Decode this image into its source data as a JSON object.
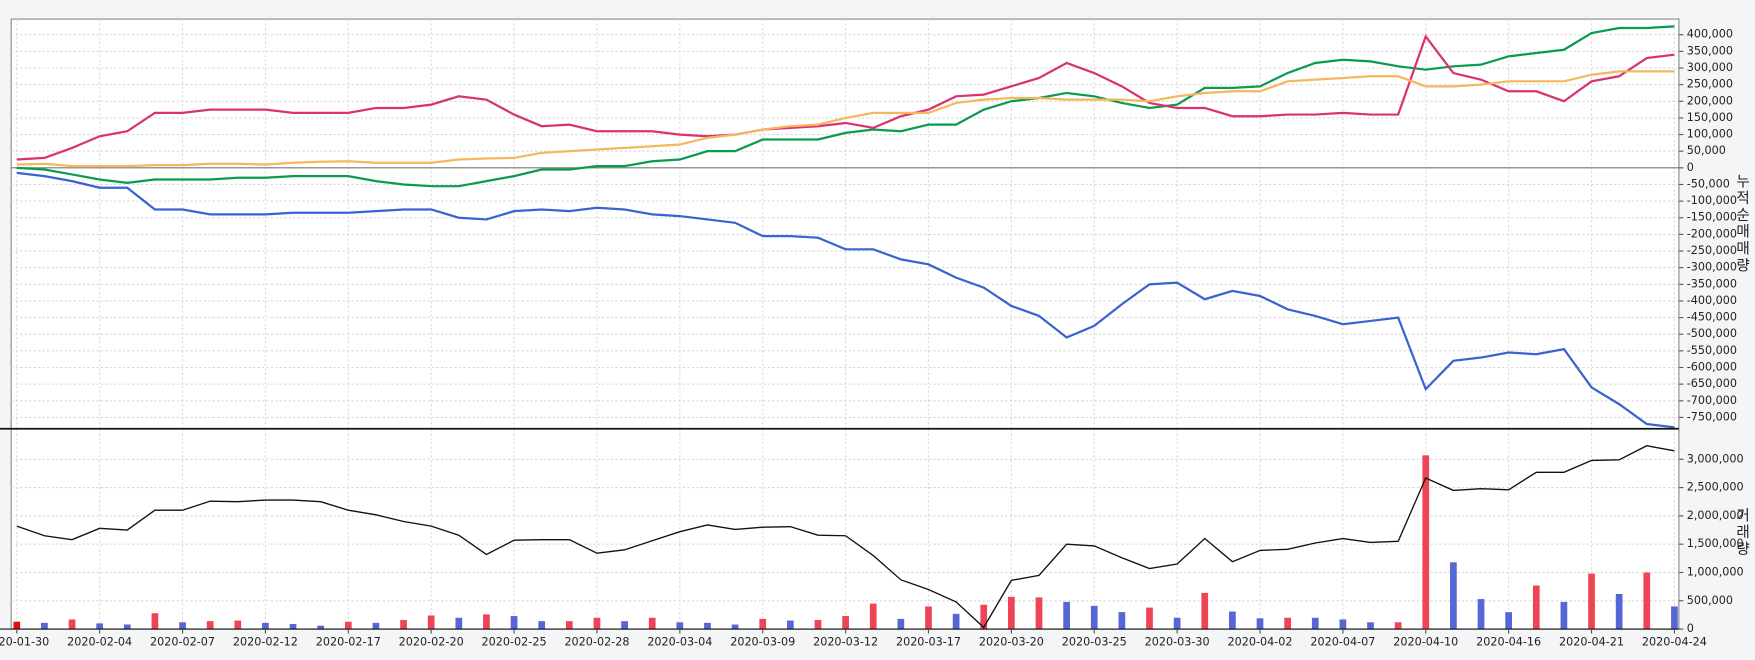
{
  "chart_data": [
    {
      "type": "line",
      "ylabel": "누적순매매량",
      "ylim": [
        -784000,
        447000
      ],
      "yticks": [
        {
          "value": -750000,
          "label": "-750,000"
        },
        {
          "value": -700000,
          "label": "-700,000"
        },
        {
          "value": -650000,
          "label": "-650,000"
        },
        {
          "value": -600000,
          "label": "-600,000"
        },
        {
          "value": -550000,
          "label": "-550,000"
        },
        {
          "value": -500000,
          "label": "-500,000"
        },
        {
          "value": -450000,
          "label": "-450,000"
        },
        {
          "value": -400000,
          "label": "-400,000"
        },
        {
          "value": -350000,
          "label": "-350,000"
        },
        {
          "value": -300000,
          "label": "-300,000"
        },
        {
          "value": -250000,
          "label": "-250,000"
        },
        {
          "value": -200000,
          "label": "-200,000"
        },
        {
          "value": -150000,
          "label": "-150,000"
        },
        {
          "value": -100000,
          "label": "-100,000"
        },
        {
          "value": -50000,
          "label": "-50,000"
        },
        0,
        {
          "value": 50000,
          "label": "50,000"
        },
        {
          "value": 100000,
          "label": "100,000"
        },
        {
          "value": 150000,
          "label": "150,000"
        },
        {
          "value": 200000,
          "label": "200,000"
        },
        {
          "value": 250000,
          "label": "250,000"
        },
        {
          "value": 300000,
          "label": "300,000"
        },
        {
          "value": 350000,
          "label": "350,000"
        },
        {
          "value": 400000,
          "label": "400,000"
        }
      ],
      "grid": true,
      "series": [
        {
          "color": "#3a63d0",
          "values": [
            -15000,
            -25000,
            -40000,
            -60000,
            -60000,
            -125000,
            -125000,
            -140000,
            -140000,
            -140000,
            -135000,
            -135000,
            -135000,
            -130000,
            -125000,
            -125000,
            -150000,
            -155000,
            -130000,
            -125000,
            -130000,
            -120000,
            -125000,
            -140000,
            -145000,
            -155000,
            -165000,
            -205000,
            -205000,
            -210000,
            -245000,
            -245000,
            -275000,
            -290000,
            -330000,
            -360000,
            -415000,
            -445000,
            -510000,
            -475000,
            -410000,
            -350000,
            -345000,
            -395000,
            -370000,
            -385000,
            -425000,
            -445000,
            -470000,
            -460000,
            -450000,
            -665000,
            -580000,
            -570000,
            -555000,
            -560000,
            -545000,
            -660000,
            -710000,
            -770000,
            -780000
          ]
        },
        {
          "color": "#0a9a50",
          "values": [
            0,
            -5000,
            -20000,
            -35000,
            -45000,
            -35000,
            -35000,
            -35000,
            -30000,
            -30000,
            -25000,
            -25000,
            -25000,
            -40000,
            -50000,
            -55000,
            -55000,
            -40000,
            -25000,
            -5000,
            -5000,
            5000,
            5000,
            20000,
            25000,
            50000,
            50000,
            85000,
            85000,
            85000,
            105000,
            115000,
            110000,
            130000,
            130000,
            175000,
            200000,
            210000,
            225000,
            215000,
            195000,
            180000,
            190000,
            240000,
            240000,
            245000,
            285000,
            315000,
            325000,
            320000,
            305000,
            295000,
            305000,
            310000,
            335000,
            345000,
            355000,
            405000,
            420000,
            420000,
            425000
          ]
        },
        {
          "color": "#d8336e",
          "values": [
            25000,
            30000,
            60000,
            95000,
            110000,
            165000,
            165000,
            175000,
            175000,
            175000,
            165000,
            165000,
            165000,
            180000,
            180000,
            190000,
            215000,
            205000,
            160000,
            125000,
            130000,
            110000,
            110000,
            110000,
            100000,
            95000,
            100000,
            115000,
            120000,
            125000,
            135000,
            120000,
            155000,
            175000,
            215000,
            220000,
            245000,
            270000,
            315000,
            285000,
            245000,
            195000,
            180000,
            180000,
            155000,
            155000,
            160000,
            160000,
            165000,
            160000,
            160000,
            395000,
            285000,
            265000,
            230000,
            230000,
            200000,
            260000,
            275000,
            330000,
            340000
          ]
        },
        {
          "color": "#f5b75c",
          "values": [
            10000,
            12000,
            5000,
            5000,
            5000,
            8000,
            8000,
            12000,
            12000,
            10000,
            15000,
            18000,
            20000,
            15000,
            15000,
            15000,
            25000,
            28000,
            30000,
            45000,
            50000,
            55000,
            60000,
            65000,
            70000,
            90000,
            100000,
            115000,
            125000,
            130000,
            150000,
            165000,
            165000,
            165000,
            195000,
            205000,
            210000,
            210000,
            205000,
            205000,
            205000,
            200000,
            215000,
            225000,
            230000,
            230000,
            260000,
            265000,
            270000,
            275000,
            275000,
            245000,
            245000,
            250000,
            260000,
            260000,
            260000,
            280000,
            290000,
            290000,
            290000
          ]
        }
      ]
    },
    {
      "type": "bar",
      "ylabel": "거래량",
      "ylim": [
        0,
        3540000
      ],
      "yticks": [
        0,
        {
          "value": 500000,
          "label": "500,000"
        },
        {
          "value": 1000000,
          "label": "1,000,000"
        },
        {
          "value": 1500000,
          "label": "1,500,000"
        },
        {
          "value": 2000000,
          "label": "2,000,000"
        },
        {
          "value": 2500000,
          "label": "2,500,000"
        },
        {
          "value": 3000000,
          "label": "3,000,000"
        }
      ],
      "grid": true,
      "categories": [
        "2020-01-30",
        null,
        null,
        "2020-02-04",
        null,
        null,
        "2020-02-07",
        null,
        null,
        "2020-02-12",
        null,
        null,
        "2020-02-17",
        null,
        null,
        "2020-02-20",
        null,
        null,
        "2020-02-25",
        null,
        null,
        "2020-02-28",
        null,
        null,
        "2020-03-04",
        null,
        null,
        "2020-03-09",
        null,
        null,
        "2020-03-12",
        null,
        null,
        "2020-03-17",
        null,
        null,
        "2020-03-20",
        null,
        null,
        "2020-03-25",
        null,
        null,
        "2020-03-30",
        null,
        null,
        "2020-04-02",
        null,
        null,
        "2020-04-07",
        null,
        null,
        "2020-04-10",
        null,
        null,
        "2020-04-16",
        null,
        null,
        "2020-04-21",
        null,
        null,
        "2020-04-24"
      ],
      "series": [
        {
          "type": "bar",
          "values": [
            130000,
            110000,
            170000,
            100000,
            80000,
            280000,
            120000,
            140000,
            150000,
            110000,
            90000,
            60000,
            130000,
            110000,
            160000,
            240000,
            200000,
            260000,
            230000,
            140000,
            140000,
            200000,
            140000,
            200000,
            120000,
            110000,
            80000,
            180000,
            150000,
            160000,
            230000,
            450000,
            180000,
            400000,
            270000,
            430000,
            570000,
            560000,
            480000,
            410000,
            300000,
            380000,
            200000,
            640000,
            310000,
            190000,
            200000,
            200000,
            170000,
            120000,
            120000,
            3070000,
            1180000,
            530000,
            300000,
            770000,
            480000,
            980000,
            620000,
            1000000,
            400000
          ],
          "colors": [
            "#dd1111",
            "#5566d6",
            "#ee4455",
            "#5566d6",
            "#5566d6",
            "#ee4455",
            "#5566d6",
            "#ee4455",
            "#ee4455",
            "#5566d6",
            "#5566d6",
            "#5566d6",
            "#ee4455",
            "#5566d6",
            "#ee4455",
            "#ee4455",
            "#5566d6",
            "#ee4455",
            "#5566d6",
            "#5566d6",
            "#ee4455",
            "#ee4455",
            "#5566d6",
            "#ee4455",
            "#5566d6",
            "#5566d6",
            "#5566d6",
            "#ee4455",
            "#5566d6",
            "#ee4455",
            "#ee4455",
            "#ee4455",
            "#5566d6",
            "#ee4455",
            "#5566d6",
            "#ee4455",
            "#ee4455",
            "#ee4455",
            "#5566d6",
            "#5566d6",
            "#5566d6",
            "#ee4455",
            "#5566d6",
            "#ee4455",
            "#5566d6",
            "#5566d6",
            "#ee4455",
            "#5566d6",
            "#5566d6",
            "#5566d6",
            "#ee4455",
            "#ee4455",
            "#5566d6",
            "#5566d6",
            "#5566d6",
            "#ee4455",
            "#5566d6",
            "#ee4455",
            "#5566d6",
            "#ee4455",
            "#5566d6"
          ]
        },
        {
          "type": "line",
          "color": "#111111",
          "values": [
            1820000,
            1650000,
            1580000,
            1780000,
            1750000,
            2100000,
            2100000,
            2260000,
            2250000,
            2280000,
            2280000,
            2250000,
            2100000,
            2020000,
            1900000,
            1820000,
            1660000,
            1320000,
            1570000,
            1580000,
            1580000,
            1340000,
            1400000,
            1560000,
            1720000,
            1840000,
            1760000,
            1800000,
            1810000,
            1660000,
            1650000,
            1300000,
            870000,
            700000,
            480000,
            30000,
            860000,
            950000,
            1500000,
            1470000,
            1260000,
            1070000,
            1150000,
            1600000,
            1190000,
            1390000,
            1410000,
            1520000,
            1600000,
            1530000,
            1550000,
            2670000,
            2450000,
            2480000,
            2460000,
            2770000,
            2770000,
            2980000,
            2990000,
            3240000,
            3150000
          ]
        }
      ]
    }
  ]
}
